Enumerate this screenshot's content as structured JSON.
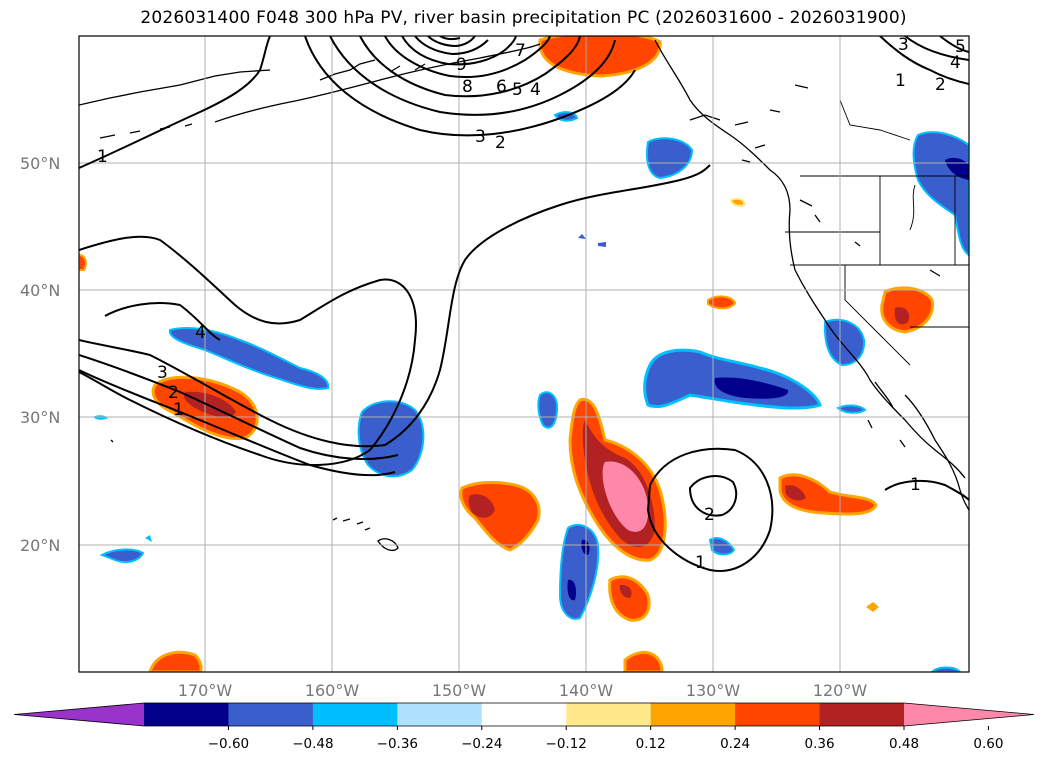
{
  "title": "2026031400 F048 300 hPa PV, river basin precipitation PC (2026031600 - 2026031900)",
  "map": {
    "lat_labels": [
      "50°N",
      "40°N",
      "30°N",
      "20°N"
    ],
    "lon_labels": [
      "170°W",
      "160°W",
      "150°W",
      "140°W",
      "130°W",
      "120°W"
    ],
    "contour_labels": [
      "1",
      "2",
      "3",
      "2",
      "1",
      "4",
      "3",
      "4",
      "5",
      "6",
      "7",
      "8",
      "9",
      "1",
      "2",
      "3",
      "4",
      "5",
      "2",
      "1",
      "1"
    ]
  },
  "colorbar": {
    "ticks": [
      "−0.60",
      "−0.48",
      "−0.36",
      "−0.24",
      "−0.12",
      "0.12",
      "0.24",
      "0.36",
      "0.48",
      "0.60"
    ],
    "colors": [
      "#9933cc",
      "#00008b",
      "#3a5fcd",
      "#00bfff",
      "#b0e2ff",
      "#ffffff",
      "#ffe98a",
      "#ffa500",
      "#ff4500",
      "#b22222",
      "#ff88aa"
    ]
  }
}
